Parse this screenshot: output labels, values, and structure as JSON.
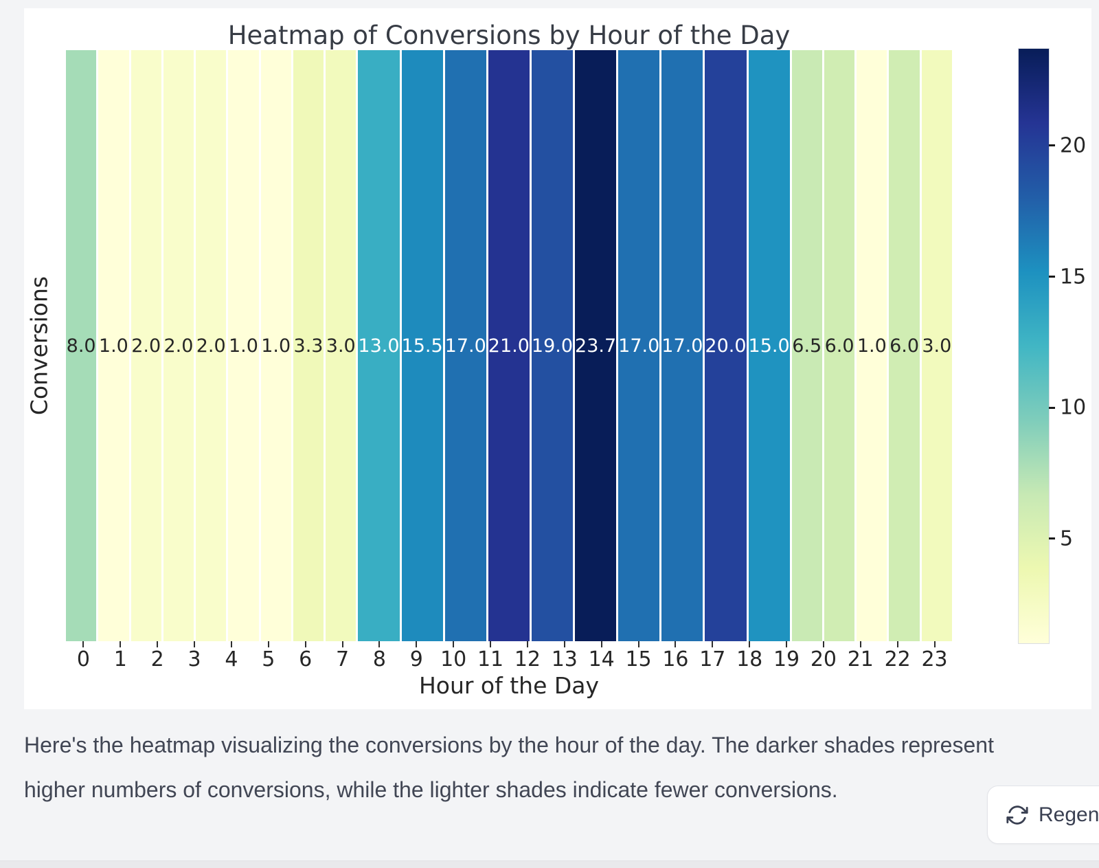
{
  "colors": {
    "page_bg": "#f3f4f6",
    "card_bg": "#ffffff",
    "chart_text": "#262626",
    "annot_dark": "#262626",
    "annot_light": "#ffffff",
    "message_text": "#414654"
  },
  "chart_data": {
    "type": "heatmap",
    "title": "Heatmap of Conversions by Hour of the Day",
    "xlabel": "Hour of the Day",
    "ylabel": "Conversions",
    "categories": [
      "0",
      "1",
      "2",
      "3",
      "4",
      "5",
      "6",
      "7",
      "8",
      "9",
      "10",
      "11",
      "12",
      "13",
      "14",
      "15",
      "16",
      "17",
      "18",
      "19",
      "20",
      "21",
      "22",
      "23"
    ],
    "values": [
      8.0,
      1.0,
      2.0,
      2.0,
      2.0,
      1.0,
      1.0,
      3.3,
      3.0,
      13.0,
      15.5,
      17.0,
      21.0,
      19.0,
      23.7,
      17.0,
      17.0,
      20.0,
      15.0,
      6.5,
      6.0,
      1.0,
      6.0,
      3.0
    ],
    "vmin": 1.0,
    "vmax": 23.7,
    "colormap": "YlGnBu",
    "colorbar_ticks": [
      5,
      10,
      15,
      20
    ],
    "annotations_shown": true,
    "grid": false,
    "legend_position": "right-colorbar"
  },
  "message": {
    "text": "Here's the heatmap visualizing the conversions by the hour of the day. The darker shades represent higher numbers of conversions, while the lighter shades indicate fewer conversions."
  },
  "actions": {
    "regenerate_label": "Regenerate"
  }
}
